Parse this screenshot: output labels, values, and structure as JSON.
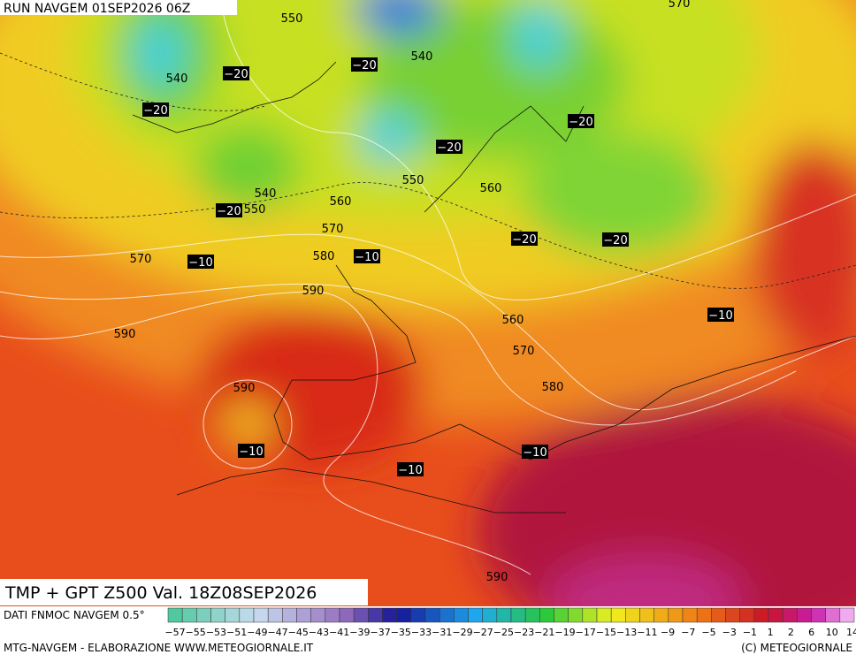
{
  "header": {
    "run": "RUN NAVGEM 01SEP2026 06Z",
    "title": "TMP + GPT Z500 Val. 18Z08SEP2026"
  },
  "map": {
    "labels": [
      "550",
      "540",
      "−20",
      "−20",
      "540",
      "−20",
      "570",
      "−20",
      "−20",
      "550",
      "560",
      "540",
      "−20",
      "550",
      "560",
      "570",
      "−20",
      "−20",
      "570",
      "−10",
      "580",
      "−10",
      "590",
      "−10",
      "590",
      "560",
      "570",
      "580",
      "590",
      "−10",
      "−10",
      "−10",
      "590"
    ]
  },
  "colorbar": {
    "source": "DATI FNMOC NAVGEM 0.5°",
    "ticks": [
      "−57",
      "−55",
      "−53",
      "−51",
      "−49",
      "−47",
      "−45",
      "−43",
      "−41",
      "−39",
      "−37",
      "−35",
      "−33",
      "−31",
      "−29",
      "−27",
      "−25",
      "−23",
      "−21",
      "−19",
      "−17",
      "−15",
      "−13",
      "−11",
      "−9",
      "−7",
      "−5",
      "−3",
      "−1",
      "1",
      "2",
      "6",
      "10",
      "14"
    ]
  },
  "footer": {
    "left": "MTG-NAVGEM - ELABORAZIONE WWW.METEOGIORNALE.IT",
    "right": "(C) METEOGIORNALE"
  }
}
